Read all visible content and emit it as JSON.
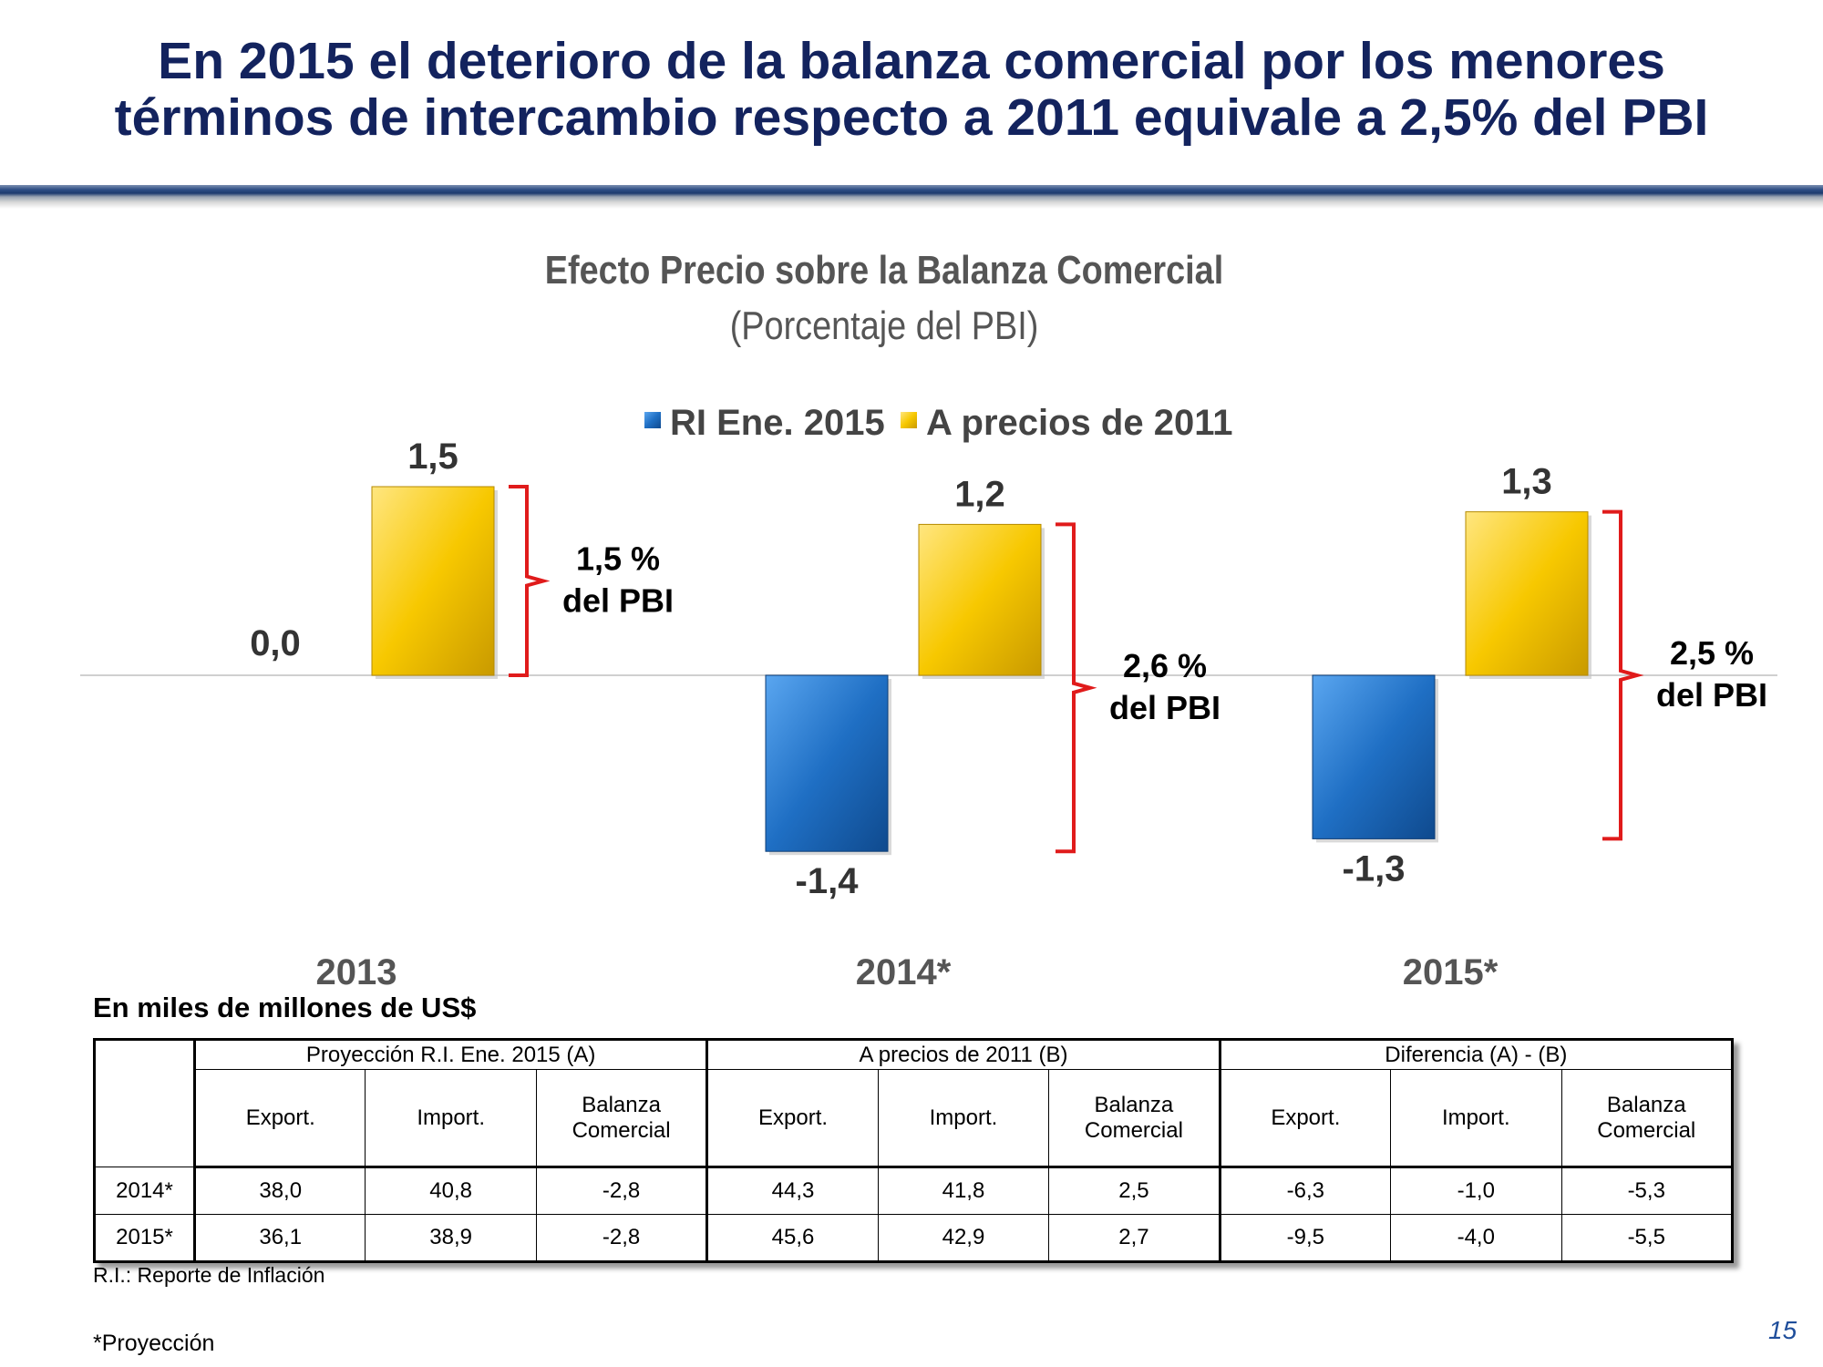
{
  "slide": {
    "title_line1": "En 2015 el deterioro de la balanza comercial por los menores",
    "title_line2": "términos de intercambio respecto a 2011 equivale a 2,5% del PBI",
    "page_number": "15",
    "title_color": "#13235e"
  },
  "chart_data": {
    "type": "bar",
    "title": "Efecto Precio sobre la Balanza Comercial",
    "subtitle": "(Porcentaje del PBI)",
    "categories": [
      "2013",
      "2014*",
      "2015*"
    ],
    "series": [
      {
        "name": "RI Ene. 2015",
        "color": "#1f6fc4",
        "values": [
          0.0,
          -1.4,
          -1.3
        ],
        "labels": [
          "0,0",
          "-1,4",
          "-1,3"
        ]
      },
      {
        "name": "A precios de 2011",
        "color": "#f5c400",
        "values": [
          1.5,
          1.2,
          1.3
        ],
        "labels": [
          "1,5",
          "1,2",
          "1,3"
        ]
      }
    ],
    "legend_position": "top-center",
    "ylim": [
      -1.8,
      1.8
    ],
    "grid": false,
    "annotations": [
      {
        "category": "2013",
        "line1": "1,5 %",
        "line2": "del PBI"
      },
      {
        "category": "2014*",
        "line1": "2,6 %",
        "line2": "del PBI"
      },
      {
        "category": "2015*",
        "line1": "2,5 %",
        "line2": "del PBI"
      }
    ],
    "bracket_color": "#e01b1b"
  },
  "table": {
    "caption": "En miles de millones de US$",
    "groups": [
      "Proyección R.I. Ene. 2015 (A)",
      "A precios de 2011 (B)",
      "Diferencia (A) - (B)"
    ],
    "subheaders": [
      {
        "line1": "Export.",
        "line2": ""
      },
      {
        "line1": "Import.",
        "line2": ""
      },
      {
        "line1": "Balanza",
        "line2": "Comercial"
      }
    ],
    "rows": [
      {
        "label": "2014*",
        "values": [
          "38,0",
          "40,8",
          "-2,8",
          "44,3",
          "41,8",
          "2,5",
          "-6,3",
          "-1,0",
          "-5,3"
        ]
      },
      {
        "label": "2015*",
        "values": [
          "36,1",
          "38,9",
          "-2,8",
          "45,6",
          "42,9",
          "2,7",
          "-9,5",
          "-4,0",
          "-5,5"
        ]
      }
    ]
  },
  "footnotes": {
    "ri": "R.I.: Reporte de Inflación",
    "projection": "*Proyección"
  }
}
